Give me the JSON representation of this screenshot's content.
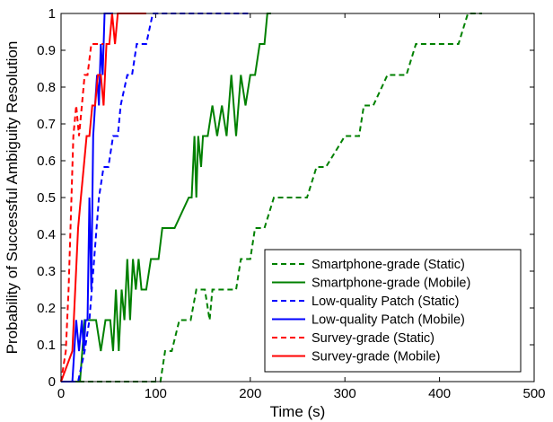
{
  "chart_data": {
    "type": "line",
    "title": "",
    "xlabel": "Time (s)",
    "ylabel": "Probability of Successful Ambiguity Resolution",
    "xlim": [
      0,
      500
    ],
    "ylim": [
      0,
      1
    ],
    "xticks": [
      0,
      100,
      200,
      300,
      400,
      500
    ],
    "yticks": [
      0,
      0.1,
      0.2,
      0.3,
      0.4,
      0.5,
      0.6,
      0.7,
      0.8,
      0.9,
      1
    ],
    "grid": false,
    "legend_position": "bottom-right",
    "series": [
      {
        "name": "Smartphone-grade (Static)",
        "color": "#008000",
        "dash": "dashed",
        "x": [
          0,
          105,
          110,
          117,
          125,
          137,
          143,
          152,
          157,
          160,
          175,
          185,
          190,
          200,
          205,
          215,
          225,
          230,
          240,
          250,
          260,
          270,
          280,
          300,
          315,
          320,
          330,
          345,
          355,
          365,
          375,
          400,
          420,
          430,
          445
        ],
        "y": [
          0,
          0,
          0.083,
          0.083,
          0.167,
          0.167,
          0.25,
          0.25,
          0.167,
          0.25,
          0.25,
          0.25,
          0.333,
          0.333,
          0.417,
          0.417,
          0.5,
          0.5,
          0.5,
          0.5,
          0.5,
          0.583,
          0.583,
          0.667,
          0.667,
          0.75,
          0.75,
          0.833,
          0.833,
          0.833,
          0.917,
          0.917,
          0.917,
          1.0,
          1.0
        ]
      },
      {
        "name": "Smartphone-grade (Mobile)",
        "color": "#008000",
        "dash": "solid",
        "x": [
          0,
          20,
          25,
          37,
          42,
          47,
          52,
          55,
          58,
          61,
          64,
          67,
          70,
          73,
          76,
          79,
          82,
          85,
          90,
          95,
          103,
          107,
          120,
          135,
          138,
          141,
          143,
          145,
          148,
          150,
          155,
          160,
          165,
          170,
          175,
          180,
          185,
          190,
          195,
          200,
          205,
          210,
          215,
          218,
          222
        ],
        "y": [
          0,
          0,
          0.167,
          0.167,
          0.083,
          0.167,
          0.167,
          0.083,
          0.25,
          0.083,
          0.25,
          0.167,
          0.333,
          0.167,
          0.333,
          0.25,
          0.333,
          0.25,
          0.25,
          0.333,
          0.333,
          0.417,
          0.417,
          0.5,
          0.5,
          0.667,
          0.5,
          0.667,
          0.583,
          0.667,
          0.667,
          0.75,
          0.667,
          0.75,
          0.667,
          0.833,
          0.667,
          0.833,
          0.75,
          0.833,
          0.833,
          0.917,
          0.917,
          1.0,
          1.0
        ]
      },
      {
        "name": "Low-quality Patch (Static)",
        "color": "#0000ff",
        "dash": "dashed",
        "x": [
          0,
          18,
          25,
          30,
          35,
          40,
          45,
          50,
          55,
          60,
          63,
          70,
          75,
          80,
          85,
          90,
          97,
          105,
          125,
          150,
          175,
          200
        ],
        "y": [
          0,
          0,
          0.083,
          0.167,
          0.333,
          0.5,
          0.583,
          0.583,
          0.667,
          0.667,
          0.75,
          0.833,
          0.833,
          0.917,
          0.917,
          0.917,
          1.0,
          1.0,
          1.0,
          1.0,
          1.0,
          1.0
        ]
      },
      {
        "name": "Low-quality Patch (Mobile)",
        "color": "#0000ff",
        "dash": "solid",
        "x": [
          0,
          12,
          16,
          19,
          22,
          24,
          26,
          28,
          30,
          32,
          34,
          36,
          38,
          40,
          42,
          44,
          46,
          50,
          55
        ],
        "y": [
          0,
          0,
          0.167,
          0.083,
          0.167,
          0.083,
          0.167,
          0.167,
          0.5,
          0.25,
          0.667,
          0.75,
          0.833,
          0.75,
          0.917,
          0.833,
          1.0,
          1.0,
          1.0
        ]
      },
      {
        "name": "Survey-grade (Static)",
        "color": "#ff0000",
        "dash": "dashed",
        "x": [
          0,
          5,
          8,
          11,
          13,
          16,
          19,
          22,
          25,
          28,
          32,
          36,
          40,
          45
        ],
        "y": [
          0,
          0.083,
          0.25,
          0.5,
          0.667,
          0.75,
          0.667,
          0.75,
          0.833,
          0.833,
          0.917,
          0.917,
          0.917,
          0.917
        ]
      },
      {
        "name": "Survey-grade (Mobile)",
        "color": "#ff0000",
        "dash": "solid",
        "x": [
          0,
          12,
          15,
          18,
          21,
          24,
          27,
          30,
          33,
          36,
          39,
          42,
          45,
          48,
          51,
          54,
          57,
          60,
          64,
          68,
          72,
          76,
          90
        ],
        "y": [
          0,
          0.083,
          0.25,
          0.417,
          0.5,
          0.583,
          0.667,
          0.667,
          0.75,
          0.75,
          0.833,
          0.833,
          0.75,
          0.917,
          0.917,
          1.0,
          0.917,
          1.0,
          1.0,
          1.0,
          1.0,
          1.0,
          1.0
        ]
      }
    ]
  }
}
